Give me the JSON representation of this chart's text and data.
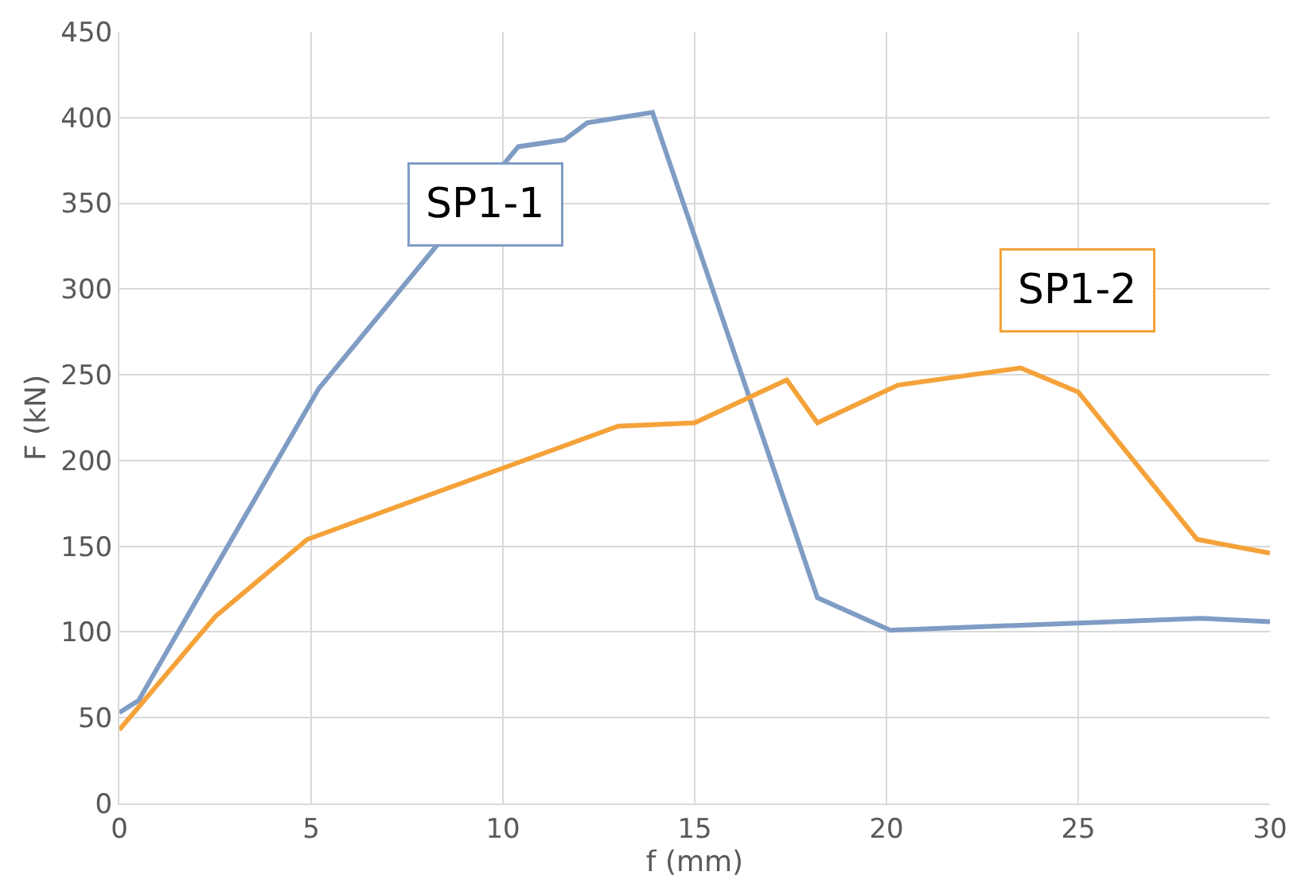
{
  "chart_data": {
    "type": "line",
    "xlabel": "f (mm)",
    "ylabel": "F (kN)",
    "xlim": [
      0,
      30
    ],
    "xticks": [
      0,
      5,
      10,
      15,
      20,
      25,
      30
    ],
    "ylim": [
      0,
      450
    ],
    "yticks": [
      0,
      50,
      100,
      150,
      200,
      250,
      300,
      350,
      400,
      450
    ],
    "grid": true,
    "legend": false,
    "marker": "none",
    "line_style": "solid",
    "series": [
      {
        "name": "SP1-1",
        "color": "#7f9cc4",
        "x": [
          0,
          0.5,
          5.2,
          10.4,
          11.6,
          12.2,
          13.9,
          18.2,
          20.1,
          28.2,
          30
        ],
        "values": [
          53,
          60,
          242,
          383,
          387,
          397,
          403,
          120,
          101,
          108,
          106
        ]
      },
      {
        "name": "SP1-2",
        "color": "#f4a239",
        "x": [
          0,
          2.5,
          4.9,
          13,
          15,
          17.4,
          18.2,
          20.3,
          23.5,
          25,
          28.1,
          30
        ],
        "values": [
          43,
          109,
          154,
          220,
          222,
          247,
          222,
          244,
          254,
          240,
          154,
          146
        ]
      }
    ]
  }
}
